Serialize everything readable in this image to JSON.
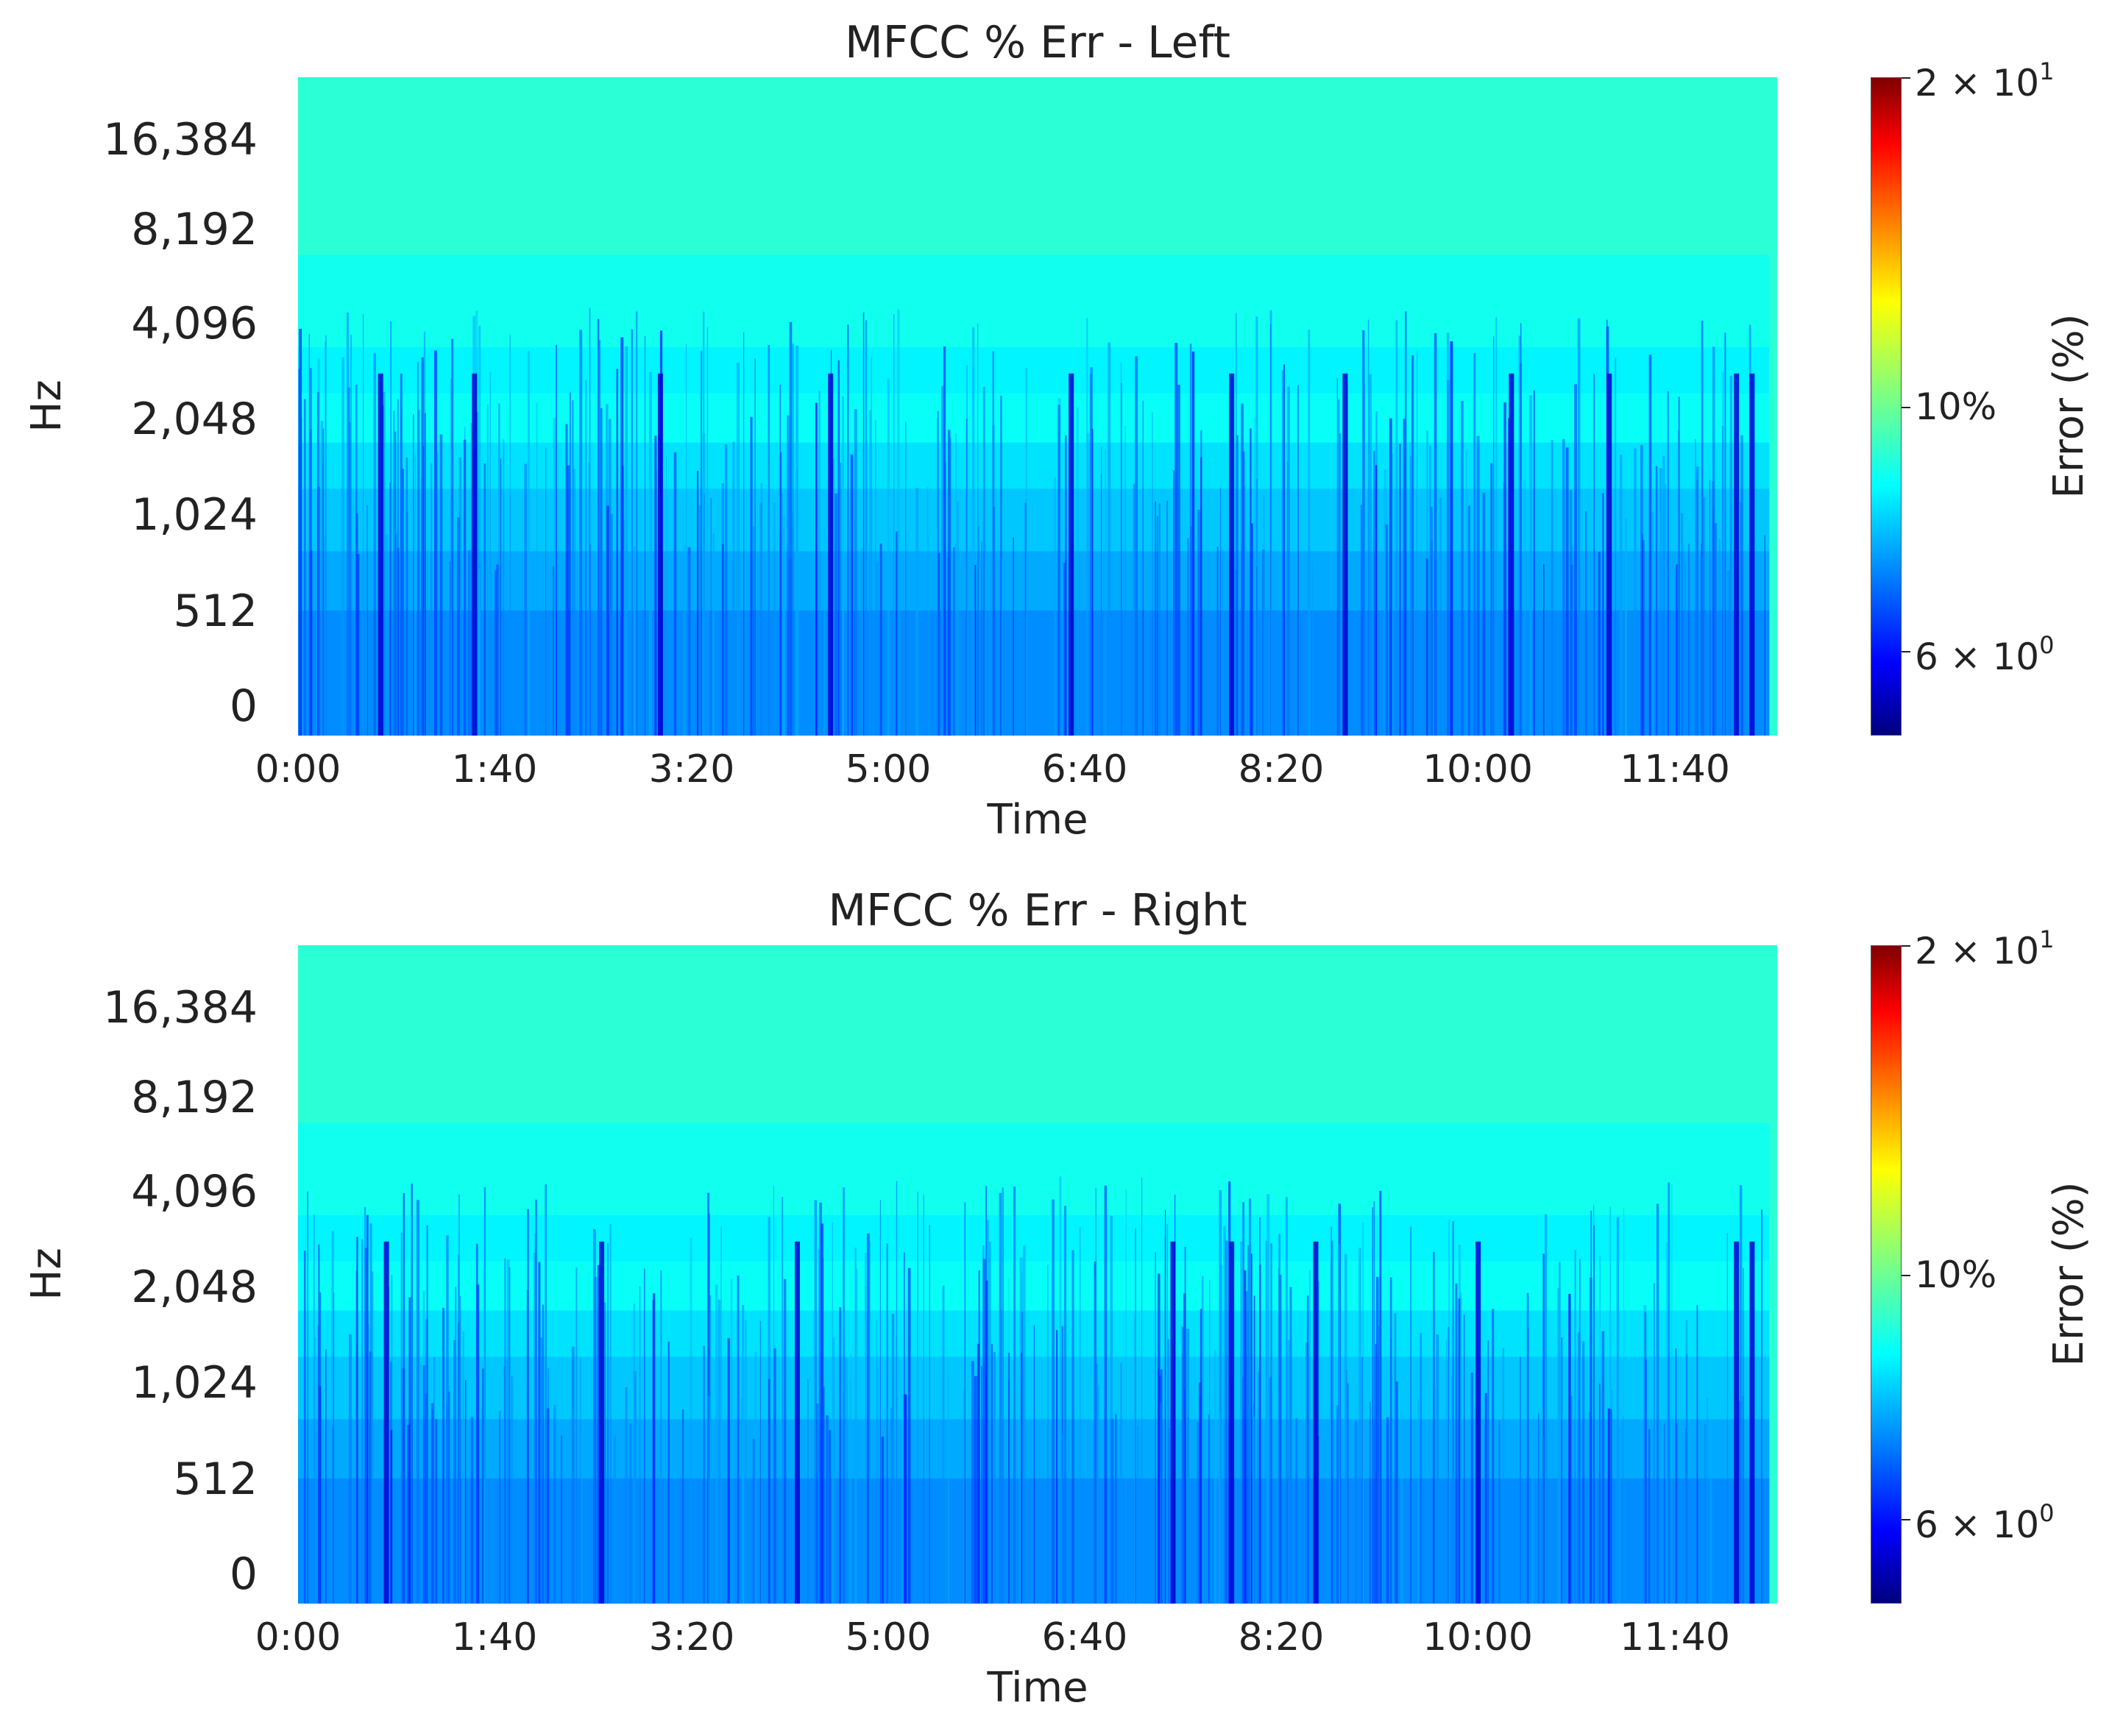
{
  "chart_data": [
    {
      "type": "heatmap",
      "title": "MFCC % Err - Left",
      "xlabel": "Time",
      "ylabel": "Hz",
      "x_ticks": [
        "0:00",
        "1:40",
        "3:20",
        "5:00",
        "6:40",
        "8:20",
        "10:00",
        "11:40"
      ],
      "x_tick_seconds": [
        0,
        100,
        200,
        300,
        400,
        500,
        600,
        700
      ],
      "x_range_seconds": [
        0,
        752
      ],
      "y_ticks": [
        "16,384",
        "8,192",
        "4,096",
        "2,048",
        "1,024",
        "512",
        "0"
      ],
      "y_scale": "log2-like (mel)",
      "colormap": "jet",
      "colorbar": {
        "label": "Error (%)",
        "scale": "log",
        "range": [
          5,
          20
        ],
        "ticks": [
          {
            "value": 20,
            "base": "2 × 10",
            "exp": "1"
          },
          {
            "value": 10,
            "text": "10%"
          },
          {
            "value": 6,
            "base": "6 × 10",
            "exp": "0"
          }
        ]
      },
      "error_bands_by_row_top_to_bottom": [
        8.5,
        8.1,
        7.8,
        7.5,
        7.2,
        6.9,
        6.6
      ],
      "dark_streak_seconds": [
        42,
        90,
        185,
        272,
        395,
        477,
        535,
        620,
        670,
        735,
        743
      ]
    },
    {
      "type": "heatmap",
      "title": "MFCC % Err - Right",
      "xlabel": "Time",
      "ylabel": "Hz",
      "x_ticks": [
        "0:00",
        "1:40",
        "3:20",
        "5:00",
        "6:40",
        "8:20",
        "10:00",
        "11:40"
      ],
      "x_tick_seconds": [
        0,
        100,
        200,
        300,
        400,
        500,
        600,
        700
      ],
      "x_range_seconds": [
        0,
        752
      ],
      "y_ticks": [
        "16,384",
        "8,192",
        "4,096",
        "2,048",
        "1,024",
        "512",
        "0"
      ],
      "y_scale": "log2-like (mel)",
      "colormap": "jet",
      "colorbar": {
        "label": "Error (%)",
        "scale": "log",
        "range": [
          5,
          20
        ],
        "ticks": [
          {
            "value": 20,
            "base": "2 × 10",
            "exp": "1"
          },
          {
            "value": 10,
            "text": "10%"
          },
          {
            "value": 6,
            "base": "6 × 10",
            "exp": "0"
          }
        ]
      },
      "error_bands_by_row_top_to_bottom": [
        8.5,
        8.1,
        7.8,
        7.5,
        7.2,
        6.9,
        6.6
      ],
      "dark_streak_seconds": [
        45,
        155,
        255,
        447,
        477,
        520,
        603,
        735,
        743
      ]
    }
  ]
}
